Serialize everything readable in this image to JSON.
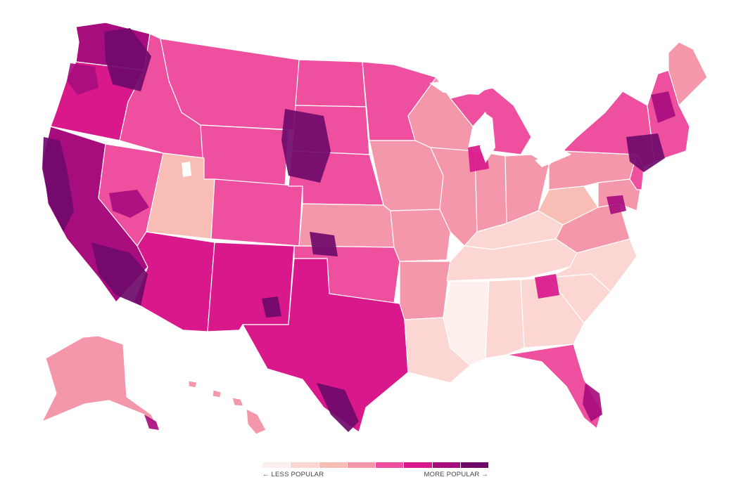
{
  "map": {
    "palette": [
      "#fdf0ec",
      "#fbd6d3",
      "#f8bdb5",
      "#f597ab",
      "#ee4f9f",
      "#d9188c",
      "#a80d7e",
      "#6f0a6a"
    ],
    "regions": [
      {
        "name": "washington",
        "level": 6
      },
      {
        "name": "oregon",
        "level": 5
      },
      {
        "name": "california",
        "level": 6
      },
      {
        "name": "nevada",
        "level": 4
      },
      {
        "name": "idaho",
        "level": 4
      },
      {
        "name": "montana",
        "level": 4
      },
      {
        "name": "wyoming",
        "level": 4
      },
      {
        "name": "utah",
        "level": 2
      },
      {
        "name": "colorado",
        "level": 4
      },
      {
        "name": "arizona",
        "level": 5
      },
      {
        "name": "new-mexico",
        "level": 5
      },
      {
        "name": "north-dakota",
        "level": 4
      },
      {
        "name": "south-dakota",
        "level": 4
      },
      {
        "name": "nebraska",
        "level": 4
      },
      {
        "name": "kansas",
        "level": 3
      },
      {
        "name": "oklahoma",
        "level": 4
      },
      {
        "name": "texas",
        "level": 5
      },
      {
        "name": "minnesota",
        "level": 4
      },
      {
        "name": "iowa",
        "level": 3
      },
      {
        "name": "missouri",
        "level": 3
      },
      {
        "name": "arkansas",
        "level": 3
      },
      {
        "name": "louisiana",
        "level": 1
      },
      {
        "name": "wisconsin",
        "level": 3
      },
      {
        "name": "illinois",
        "level": 3
      },
      {
        "name": "michigan",
        "level": 4
      },
      {
        "name": "indiana",
        "level": 3
      },
      {
        "name": "ohio",
        "level": 3
      },
      {
        "name": "kentucky",
        "level": 1
      },
      {
        "name": "tennessee",
        "level": 1
      },
      {
        "name": "mississippi",
        "level": 0
      },
      {
        "name": "alabama",
        "level": 1
      },
      {
        "name": "georgia",
        "level": 1
      },
      {
        "name": "florida",
        "level": 4
      },
      {
        "name": "south-carolina",
        "level": 1
      },
      {
        "name": "north-carolina",
        "level": 1
      },
      {
        "name": "virginia",
        "level": 3
      },
      {
        "name": "west-virginia",
        "level": 2
      },
      {
        "name": "pennsylvania",
        "level": 3
      },
      {
        "name": "new-york",
        "level": 4
      },
      {
        "name": "new-england",
        "level": 4
      },
      {
        "name": "maine",
        "level": 3
      },
      {
        "name": "alaska",
        "level": 3
      },
      {
        "name": "hawaii",
        "level": 3
      }
    ],
    "hotspots": [
      {
        "name": "seattle-area",
        "level": 7
      },
      {
        "name": "portland-area",
        "level": 6
      },
      {
        "name": "san-francisco-area",
        "level": 7
      },
      {
        "name": "los-angeles-area",
        "level": 7
      },
      {
        "name": "las-vegas-area",
        "level": 6
      },
      {
        "name": "denver-area",
        "level": 7
      },
      {
        "name": "santa-fe-area",
        "level": 7
      },
      {
        "name": "south-texas",
        "level": 7
      },
      {
        "name": "new-york-area",
        "level": 7
      },
      {
        "name": "boston-area",
        "level": 6
      },
      {
        "name": "washington-dc-area",
        "level": 6
      },
      {
        "name": "south-florida",
        "level": 6
      },
      {
        "name": "atlanta-area",
        "level": 5
      },
      {
        "name": "chicago-area",
        "level": 5
      }
    ]
  },
  "legend": {
    "less_label": "← LESS POPULAR",
    "more_label": "MORE POPULAR →"
  }
}
